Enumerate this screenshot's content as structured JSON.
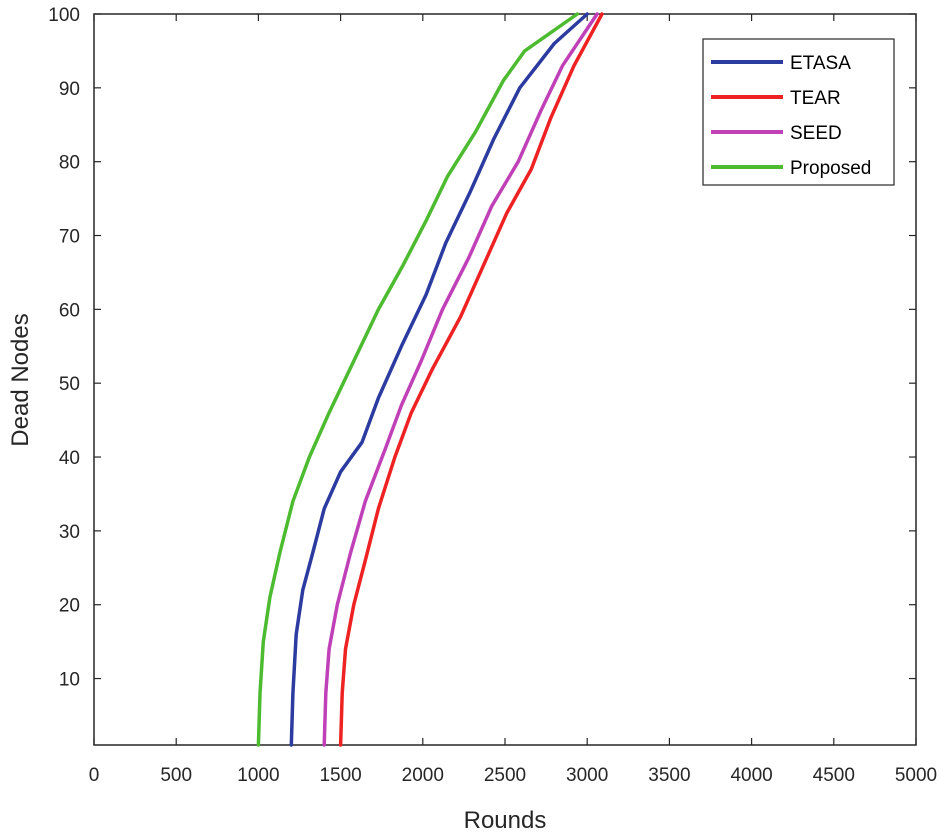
{
  "chart_data": {
    "type": "line",
    "xlabel": "Rounds",
    "ylabel": "Dead Nodes",
    "xlim": [
      0,
      5000
    ],
    "ylim": [
      1,
      100
    ],
    "x_ticks": [
      0,
      500,
      1000,
      1500,
      2000,
      2500,
      3000,
      3500,
      4000,
      4500,
      5000
    ],
    "y_ticks": [
      10,
      20,
      30,
      40,
      50,
      60,
      70,
      80,
      90,
      100
    ],
    "grid": false,
    "legend_position": "top-right",
    "series": [
      {
        "name": "ETASA",
        "color": "#2b3ba0",
        "points": [
          [
            1200,
            1
          ],
          [
            1210,
            8
          ],
          [
            1230,
            16
          ],
          [
            1270,
            22
          ],
          [
            1330,
            27
          ],
          [
            1400,
            33
          ],
          [
            1500,
            38
          ],
          [
            1630,
            42
          ],
          [
            1730,
            48
          ],
          [
            1870,
            55
          ],
          [
            2020,
            62
          ],
          [
            2140,
            69
          ],
          [
            2290,
            76
          ],
          [
            2430,
            83
          ],
          [
            2590,
            90
          ],
          [
            2800,
            96
          ],
          [
            3000,
            100
          ]
        ]
      },
      {
        "name": "TEAR",
        "color": "#ee2222",
        "points": [
          [
            1500,
            1
          ],
          [
            1510,
            8
          ],
          [
            1530,
            14
          ],
          [
            1580,
            20
          ],
          [
            1650,
            26
          ],
          [
            1730,
            33
          ],
          [
            1830,
            40
          ],
          [
            1930,
            46
          ],
          [
            2060,
            52
          ],
          [
            2230,
            59
          ],
          [
            2370,
            66
          ],
          [
            2510,
            73
          ],
          [
            2660,
            79
          ],
          [
            2780,
            86
          ],
          [
            2920,
            93
          ],
          [
            3090,
            100
          ]
        ]
      },
      {
        "name": "SEED",
        "color": "#c040b8",
        "points": [
          [
            1400,
            1
          ],
          [
            1410,
            8
          ],
          [
            1430,
            14
          ],
          [
            1480,
            20
          ],
          [
            1560,
            27
          ],
          [
            1650,
            34
          ],
          [
            1770,
            41
          ],
          [
            1870,
            47
          ],
          [
            1990,
            53
          ],
          [
            2120,
            60
          ],
          [
            2280,
            67
          ],
          [
            2420,
            74
          ],
          [
            2580,
            80
          ],
          [
            2720,
            87
          ],
          [
            2850,
            93
          ],
          [
            3060,
            100
          ]
        ]
      },
      {
        "name": "Proposed",
        "color": "#4cbb30",
        "points": [
          [
            1000,
            1
          ],
          [
            1010,
            8
          ],
          [
            1030,
            15
          ],
          [
            1070,
            21
          ],
          [
            1130,
            27
          ],
          [
            1210,
            34
          ],
          [
            1310,
            40
          ],
          [
            1430,
            46
          ],
          [
            1580,
            53
          ],
          [
            1730,
            60
          ],
          [
            1880,
            66
          ],
          [
            2020,
            72
          ],
          [
            2150,
            78
          ],
          [
            2320,
            84
          ],
          [
            2490,
            91
          ],
          [
            2620,
            95
          ],
          [
            2940,
            100
          ]
        ]
      }
    ]
  }
}
